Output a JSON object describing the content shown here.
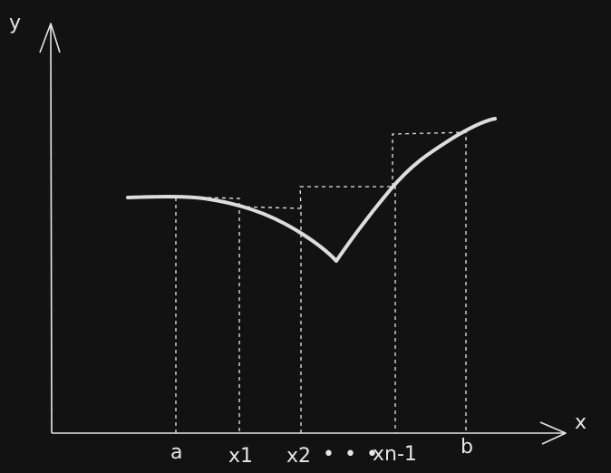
{
  "canvas": {
    "background": "#121212",
    "stroke_color": "#e6e6e6",
    "curve_color": "#dddddd"
  },
  "axes": {
    "x_label": "x",
    "y_label": "y"
  },
  "ticks": {
    "a": "a",
    "x1": "x1",
    "x2": "x2",
    "xn_1": "xn-1",
    "b": "b",
    "ellipsis": "• • •"
  }
}
